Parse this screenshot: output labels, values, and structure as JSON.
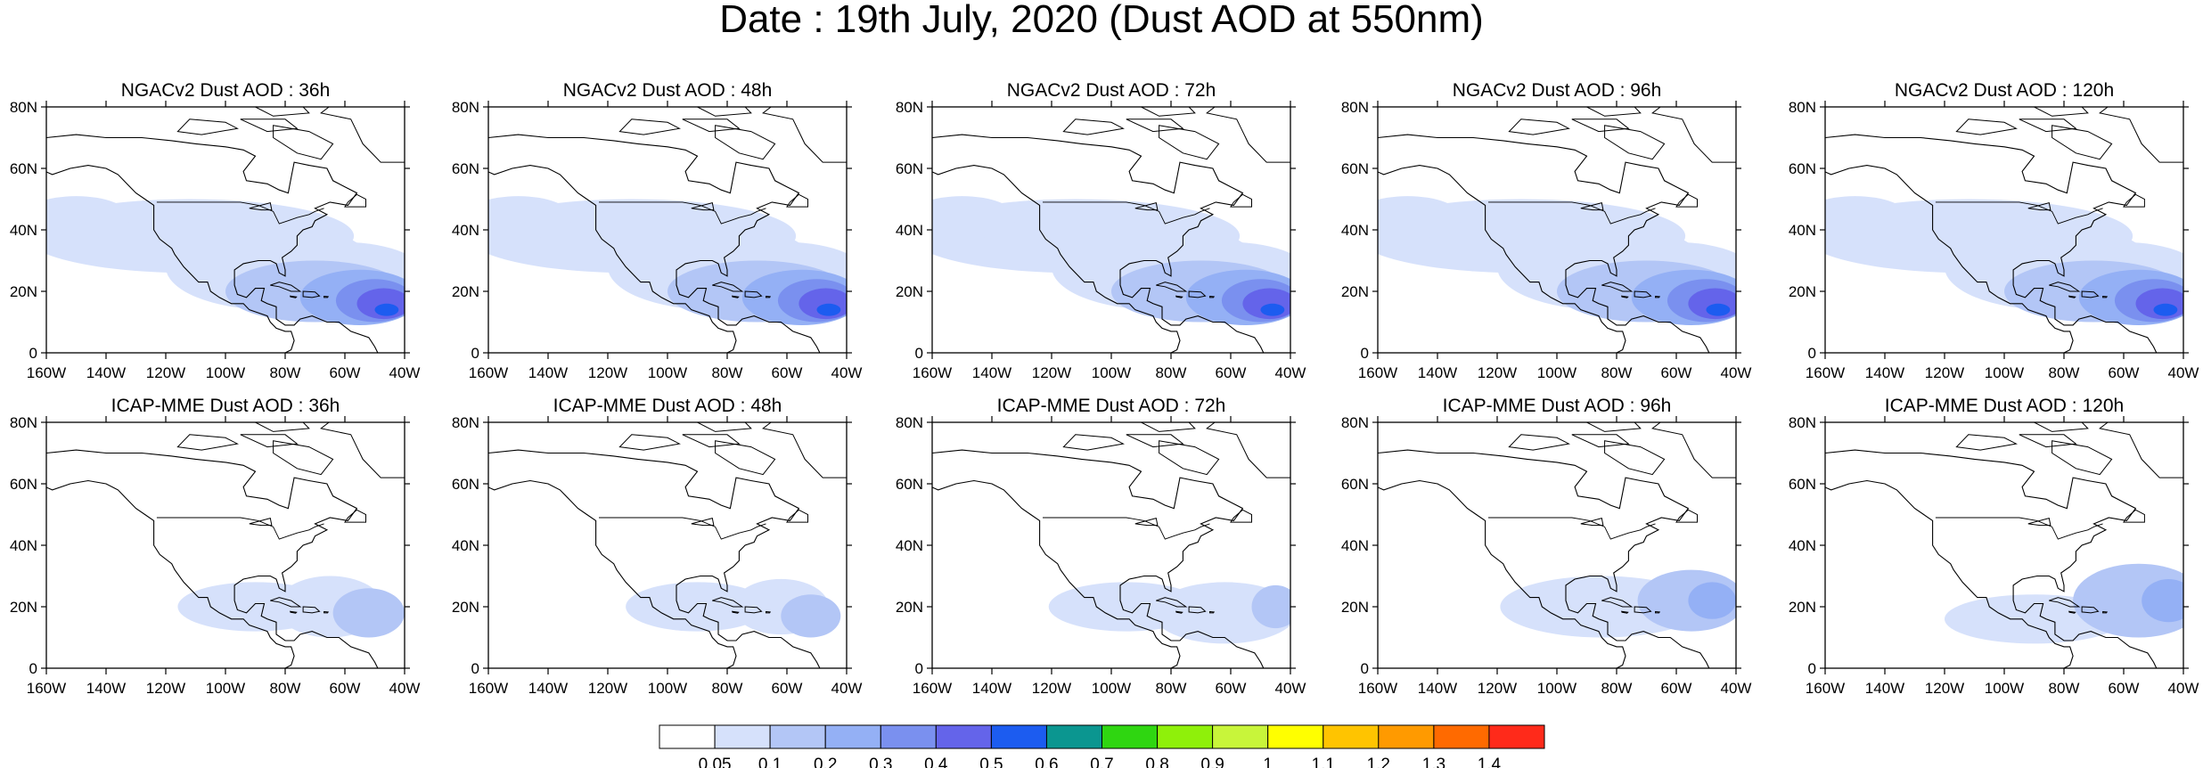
{
  "title": "Date : 19th July, 2020 (Dust AOD at 550nm)",
  "lat_ticks": [
    "80N",
    "60N",
    "40N",
    "20N",
    "0"
  ],
  "lon_ticks": [
    "160W",
    "140W",
    "120W",
    "100W",
    "80W",
    "60W",
    "40W"
  ],
  "map_extent": {
    "lon": [
      -160,
      -40
    ],
    "lat": [
      0,
      80
    ]
  },
  "panels": [
    {
      "title": "NGACv2 Dust AOD : 36h",
      "model": "NGACv2",
      "lead": "36h"
    },
    {
      "title": "NGACv2 Dust AOD : 48h",
      "model": "NGACv2",
      "lead": "48h"
    },
    {
      "title": "NGACv2 Dust AOD : 72h",
      "model": "NGACv2",
      "lead": "72h"
    },
    {
      "title": "NGACv2 Dust AOD : 96h",
      "model": "NGACv2",
      "lead": "96h"
    },
    {
      "title": "NGACv2 Dust AOD : 120h",
      "model": "NGACv2",
      "lead": "120h"
    },
    {
      "title": "ICAP-MME Dust AOD : 36h",
      "model": "ICAP-MME",
      "lead": "36h"
    },
    {
      "title": "ICAP-MME Dust AOD : 48h",
      "model": "ICAP-MME",
      "lead": "48h"
    },
    {
      "title": "ICAP-MME Dust AOD : 72h",
      "model": "ICAP-MME",
      "lead": "72h"
    },
    {
      "title": "ICAP-MME Dust AOD : 96h",
      "model": "ICAP-MME",
      "lead": "96h"
    },
    {
      "title": "ICAP-MME Dust AOD : 120h",
      "model": "ICAP-MME",
      "lead": "120h"
    }
  ],
  "colorbar": {
    "labels": [
      "0.05",
      "0.1",
      "0.2",
      "0.3",
      "0.4",
      "0.5",
      "0.6",
      "0.7",
      "0.8",
      "0.9",
      "1",
      "1.1",
      "1.2",
      "1.3",
      "1.4"
    ],
    "colors": [
      "#ffffff",
      "#d6e1fb",
      "#b3c6f6",
      "#94b0f5",
      "#7a90ef",
      "#6464ea",
      "#1c5cf0",
      "#0b9690",
      "#2fd611",
      "#8ff00a",
      "#c8f53a",
      "#ffff00",
      "#ffc400",
      "#ff9a00",
      "#ff6a00",
      "#ff2a1a"
    ]
  }
}
